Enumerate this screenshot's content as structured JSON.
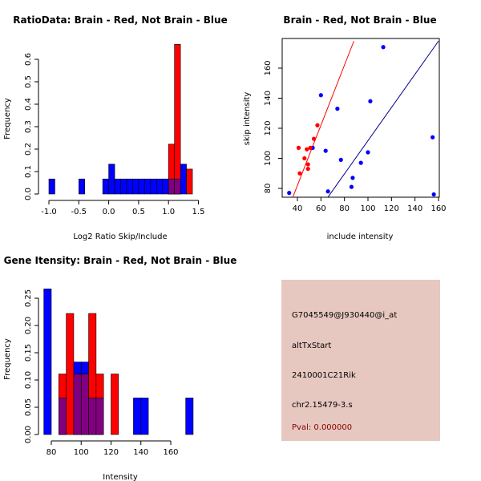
{
  "chart_data": [
    {
      "type": "histogram",
      "title": "RatioData: Brain - Red, Not Brain - Blue",
      "xlabel": "Log2 Ratio Skip/Include",
      "ylabel": "Frequency",
      "xlim": [
        -1.1,
        1.5
      ],
      "ylim": [
        0,
        0.72
      ],
      "xticks": [
        -1.0,
        -0.5,
        0.0,
        0.5,
        1.0,
        1.5
      ],
      "xtick_labels": [
        "-1.0",
        "-0.5",
        "0.0",
        "0.5",
        "1.0",
        "1.5"
      ],
      "yticks": [
        0.0,
        0.1,
        0.2,
        0.3,
        0.4,
        0.5,
        0.6
      ],
      "ytick_labels": [
        "0.0",
        "0.1",
        "0.2",
        "0.3",
        "0.4",
        "0.5",
        "0.6"
      ],
      "bin_width": 0.1,
      "colors": {
        "brain": "#ff0000",
        "not_brain": "#0000ff",
        "overlap": "#800080"
      },
      "series": [
        {
          "name": "Not Brain",
          "color": "#0000ff",
          "bins": [
            {
              "x0": -1.0,
              "x1": -0.9,
              "value": 0.067
            },
            {
              "x0": -0.5,
              "x1": -0.4,
              "value": 0.067
            },
            {
              "x0": -0.1,
              "x1": 0.0,
              "value": 0.067
            },
            {
              "x0": 0.0,
              "x1": 0.1,
              "value": 0.133
            },
            {
              "x0": 0.1,
              "x1": 0.2,
              "value": 0.067
            },
            {
              "x0": 0.2,
              "x1": 0.3,
              "value": 0.067
            },
            {
              "x0": 0.3,
              "x1": 0.4,
              "value": 0.067
            },
            {
              "x0": 0.4,
              "x1": 0.5,
              "value": 0.067
            },
            {
              "x0": 0.5,
              "x1": 0.6,
              "value": 0.067
            },
            {
              "x0": 0.6,
              "x1": 0.7,
              "value": 0.067
            },
            {
              "x0": 0.7,
              "x1": 0.8,
              "value": 0.067
            },
            {
              "x0": 0.8,
              "x1": 0.9,
              "value": 0.067
            },
            {
              "x0": 0.9,
              "x1": 1.0,
              "value": 0.067
            },
            {
              "x0": 1.0,
              "x1": 1.1,
              "value": 0.067
            },
            {
              "x0": 1.1,
              "x1": 1.2,
              "value": 0.067
            },
            {
              "x0": 1.2,
              "x1": 1.3,
              "value": 0.133
            }
          ]
        },
        {
          "name": "Brain",
          "color": "#ff0000",
          "bins": [
            {
              "x0": 1.0,
              "x1": 1.1,
              "value": 0.222
            },
            {
              "x0": 1.1,
              "x1": 1.2,
              "value": 0.667
            },
            {
              "x0": 1.3,
              "x1": 1.4,
              "value": 0.111
            }
          ]
        }
      ]
    },
    {
      "type": "scatter",
      "title": "Brain - Red, Not Brain - Blue",
      "xlabel": "include intensity",
      "ylabel": "skip intensity",
      "xlim": [
        28,
        160
      ],
      "ylim": [
        72,
        178
      ],
      "xticks": [
        40,
        60,
        80,
        100,
        120,
        140,
        160
      ],
      "xtick_labels": [
        "40",
        "60",
        "80",
        "100",
        "120",
        "140",
        "160"
      ],
      "yticks": [
        80,
        100,
        120,
        140,
        160
      ],
      "ytick_labels": [
        "80",
        "100",
        "120",
        "140",
        "160"
      ],
      "series": [
        {
          "name": "Not Brain",
          "color": "#0000ff",
          "points": [
            [
              33,
              77
            ],
            [
              53,
              107
            ],
            [
              60,
              142
            ],
            [
              64,
              105
            ],
            [
              66,
              78
            ],
            [
              74,
              133
            ],
            [
              77,
              99
            ],
            [
              86,
              81
            ],
            [
              87,
              87
            ],
            [
              94,
              97
            ],
            [
              100,
              104
            ],
            [
              102,
              138
            ],
            [
              113,
              174
            ],
            [
              155,
              114
            ],
            [
              156,
              76
            ]
          ]
        },
        {
          "name": "Brain",
          "color": "#ff0000",
          "points": [
            [
              41,
              107
            ],
            [
              42,
              90
            ],
            [
              46,
              100
            ],
            [
              48,
              106
            ],
            [
              49,
              96
            ],
            [
              49,
              93
            ],
            [
              51,
              107
            ],
            [
              54,
              113
            ],
            [
              57,
              122
            ]
          ]
        }
      ],
      "lines": [
        {
          "name": "Brain fit",
          "color": "#ff0000",
          "from": [
            36,
            74
          ],
          "to": [
            88,
            178
          ]
        },
        {
          "name": "Not Brain fit",
          "color": "#00008b",
          "from": [
            64,
            72
          ],
          "to": [
            160,
            178
          ]
        }
      ]
    },
    {
      "type": "histogram",
      "title": "Gene Itensity: Brain - Red, Not Brain - Blue",
      "xlabel": "Intensity",
      "ylabel": "Frequency",
      "xlim": [
        76,
        178
      ],
      "ylim": [
        0,
        0.275
      ],
      "xticks": [
        80,
        100,
        120,
        140,
        160
      ],
      "xtick_labels": [
        "80",
        "100",
        "120",
        "140",
        "160"
      ],
      "yticks": [
        0.0,
        0.05,
        0.1,
        0.15,
        0.2,
        0.25
      ],
      "ytick_labels": [
        "0.00",
        "0.05",
        "0.10",
        "0.15",
        "0.20",
        "0.25"
      ],
      "bin_width": 5,
      "series": [
        {
          "name": "Not Brain",
          "color": "#0000ff",
          "bins": [
            {
              "x0": 75,
              "x1": 80,
              "value": 0.267
            },
            {
              "x0": 85,
              "x1": 90,
              "value": 0.067
            },
            {
              "x0": 95,
              "x1": 100,
              "value": 0.133
            },
            {
              "x0": 100,
              "x1": 105,
              "value": 0.133
            },
            {
              "x0": 105,
              "x1": 110,
              "value": 0.067
            },
            {
              "x0": 110,
              "x1": 115,
              "value": 0.067
            },
            {
              "x0": 135,
              "x1": 140,
              "value": 0.067
            },
            {
              "x0": 140,
              "x1": 145,
              "value": 0.067
            },
            {
              "x0": 170,
              "x1": 175,
              "value": 0.067
            }
          ]
        },
        {
          "name": "Brain",
          "color": "#ff0000",
          "bins": [
            {
              "x0": 85,
              "x1": 90,
              "value": 0.111
            },
            {
              "x0": 90,
              "x1": 95,
              "value": 0.222
            },
            {
              "x0": 95,
              "x1": 100,
              "value": 0.111
            },
            {
              "x0": 100,
              "x1": 105,
              "value": 0.111
            },
            {
              "x0": 105,
              "x1": 110,
              "value": 0.222
            },
            {
              "x0": 110,
              "x1": 115,
              "value": 0.111
            },
            {
              "x0": 120,
              "x1": 125,
              "value": 0.111
            }
          ]
        }
      ]
    }
  ],
  "info_panel": {
    "background": "#e6c8c0",
    "probe_id": "G7045549@J930440@i_at",
    "event_type": "altTxStart",
    "gene": "2410001C21Rik",
    "location": "chr2.15479-3.s",
    "pval": "Pval: 0.000000",
    "pval_color": "#8b0000"
  }
}
